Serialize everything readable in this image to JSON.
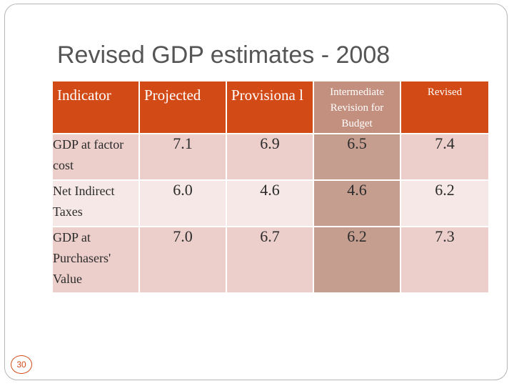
{
  "slide": {
    "title": "Revised GDP estimates - 2008",
    "page_number": "30"
  },
  "table": {
    "headers": [
      "Indicator",
      "Projected",
      "Provisiona l",
      "Intermediate Revision for Budget",
      "Revised"
    ],
    "rows": [
      {
        "indicator": "GDP at factor cost",
        "values": [
          "7.1",
          "6.9",
          "6.5",
          "7.4"
        ]
      },
      {
        "indicator": "Net Indirect Taxes",
        "values": [
          "6.0",
          "4.6",
          "4.6",
          "6.2"
        ]
      },
      {
        "indicator": "GDP at Purchasers' Value",
        "values": [
          "7.0",
          "6.7",
          "6.2",
          "7.3"
        ]
      }
    ]
  },
  "colors": {
    "header_bg": "#d24a16",
    "highlight_header_bg": "#c38f7e",
    "row_bg_dark": "#eccfcb",
    "row_bg_light": "#f5e8e6",
    "highlight_col_bg": "#c59e90",
    "title_text": "#555555"
  }
}
